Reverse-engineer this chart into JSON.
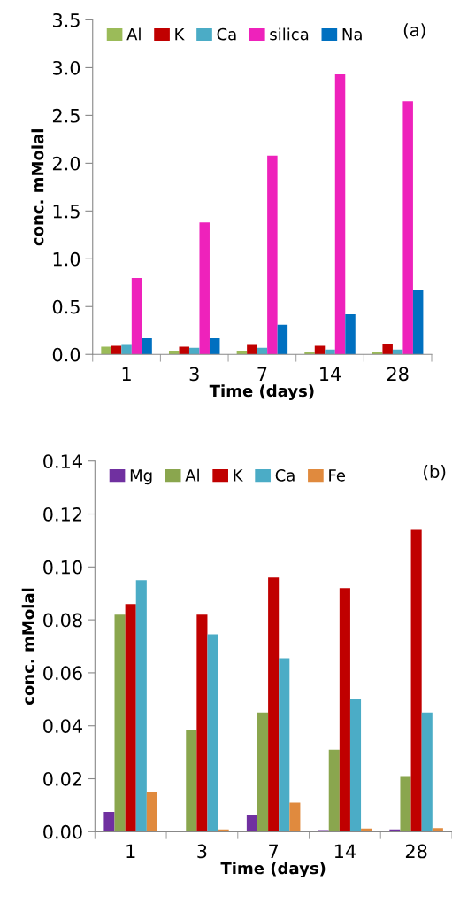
{
  "chart_data": [
    {
      "type": "bar",
      "categories": [
        "1",
        "3",
        "7",
        "14",
        "28"
      ],
      "xlabel": "Time (days)",
      "ylabel": "conc. mMolal",
      "ylim": [
        0,
        3.5
      ],
      "yticks": [
        {
          "value": 0,
          "label": "0.0"
        },
        0.5,
        {
          "value": 1,
          "label": "1.0"
        },
        1.5,
        {
          "value": 2,
          "label": "2.0"
        },
        2.5,
        {
          "value": 3,
          "label": "3.0"
        },
        3.5
      ],
      "grid": false,
      "legend": "top",
      "annotations": [
        "(a)"
      ],
      "series": [
        {
          "name": "Al",
          "color": "#9bbb59",
          "values": [
            0.08,
            0.04,
            0.04,
            0.03,
            0.02
          ]
        },
        {
          "name": "K",
          "color": "#c00000",
          "values": [
            0.09,
            0.08,
            0.1,
            0.09,
            0.11
          ]
        },
        {
          "name": "Ca",
          "color": "#4bacc6",
          "values": [
            0.1,
            0.07,
            0.07,
            0.05,
            0.05
          ]
        },
        {
          "name": "silica",
          "color": "#ee22bb",
          "values": [
            0.8,
            1.38,
            2.08,
            2.93,
            2.65
          ]
        },
        {
          "name": "Na",
          "color": "#0070c0",
          "values": [
            0.17,
            0.17,
            0.31,
            0.42,
            0.67
          ]
        }
      ]
    },
    {
      "type": "bar",
      "categories": [
        "1",
        "3",
        "7",
        "14",
        "28"
      ],
      "xlabel": "Time (days)",
      "ylabel": "conc. mMolal",
      "ylim": [
        0,
        0.14
      ],
      "yticks": [
        {
          "value": 0,
          "label": "0.00"
        },
        {
          "value": 0.02,
          "label": "0.02"
        },
        {
          "value": 0.04,
          "label": "0.04"
        },
        {
          "value": 0.06,
          "label": "0.06"
        },
        {
          "value": 0.08,
          "label": "0.08"
        },
        {
          "value": 0.1,
          "label": "0.10"
        },
        {
          "value": 0.12,
          "label": "0.12"
        },
        {
          "value": 0.14,
          "label": "0.14"
        }
      ],
      "grid": false,
      "legend": "top",
      "annotations": [
        "(b)"
      ],
      "series": [
        {
          "name": "Mg",
          "color": "#7030a0",
          "values": [
            0.0075,
            0.0003,
            0.0063,
            0.0006,
            0.0009
          ]
        },
        {
          "name": "Al",
          "color": "#8aa64e",
          "values": [
            0.082,
            0.0385,
            0.045,
            0.031,
            0.021
          ]
        },
        {
          "name": "K",
          "color": "#c00000",
          "values": [
            0.086,
            0.082,
            0.096,
            0.092,
            0.114
          ]
        },
        {
          "name": "Ca",
          "color": "#4bacc6",
          "values": [
            0.095,
            0.0745,
            0.0655,
            0.05,
            0.045
          ]
        },
        {
          "name": "Fe",
          "color": "#e08a3e",
          "values": [
            0.015,
            0.0009,
            0.011,
            0.0012,
            0.0014
          ]
        }
      ]
    }
  ]
}
